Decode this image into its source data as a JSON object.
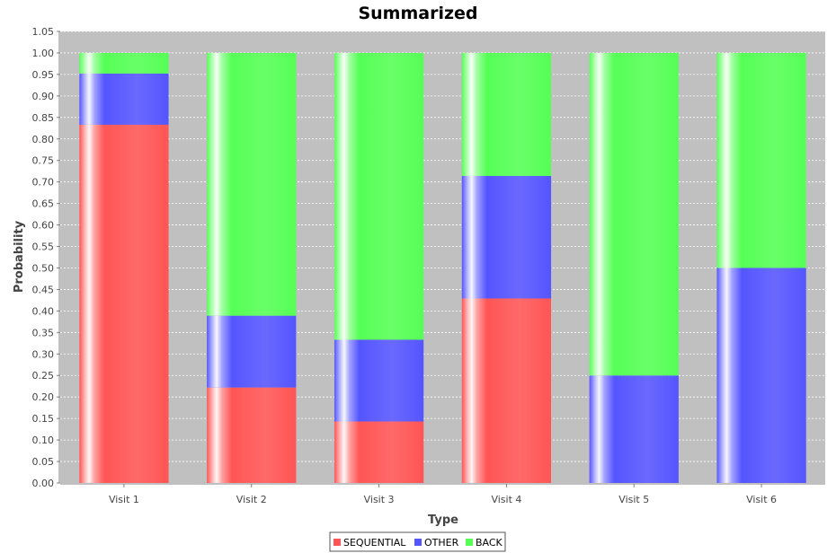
{
  "chart_data": {
    "type": "bar",
    "stacked": true,
    "title": "Summarized",
    "xlabel": "Type",
    "ylabel": "Probability",
    "ylim": [
      0,
      1.05
    ],
    "ytick_step": 0.05,
    "grid": true,
    "legend_position": "bottom",
    "categories": [
      "Visit 1",
      "Visit 2",
      "Visit 3",
      "Visit 4",
      "Visit 5",
      "Visit 6"
    ],
    "series": [
      {
        "name": "SEQUENTIAL",
        "color": "#ff5555",
        "values": [
          0.833,
          0.222,
          0.143,
          0.429,
          0.0,
          0.0
        ]
      },
      {
        "name": "OTHER",
        "color": "#5555ff",
        "values": [
          0.119,
          0.167,
          0.19,
          0.285,
          0.25,
          0.5
        ]
      },
      {
        "name": "BACK",
        "color": "#55ff55",
        "values": [
          0.048,
          0.611,
          0.667,
          0.286,
          0.75,
          0.5
        ]
      }
    ]
  }
}
